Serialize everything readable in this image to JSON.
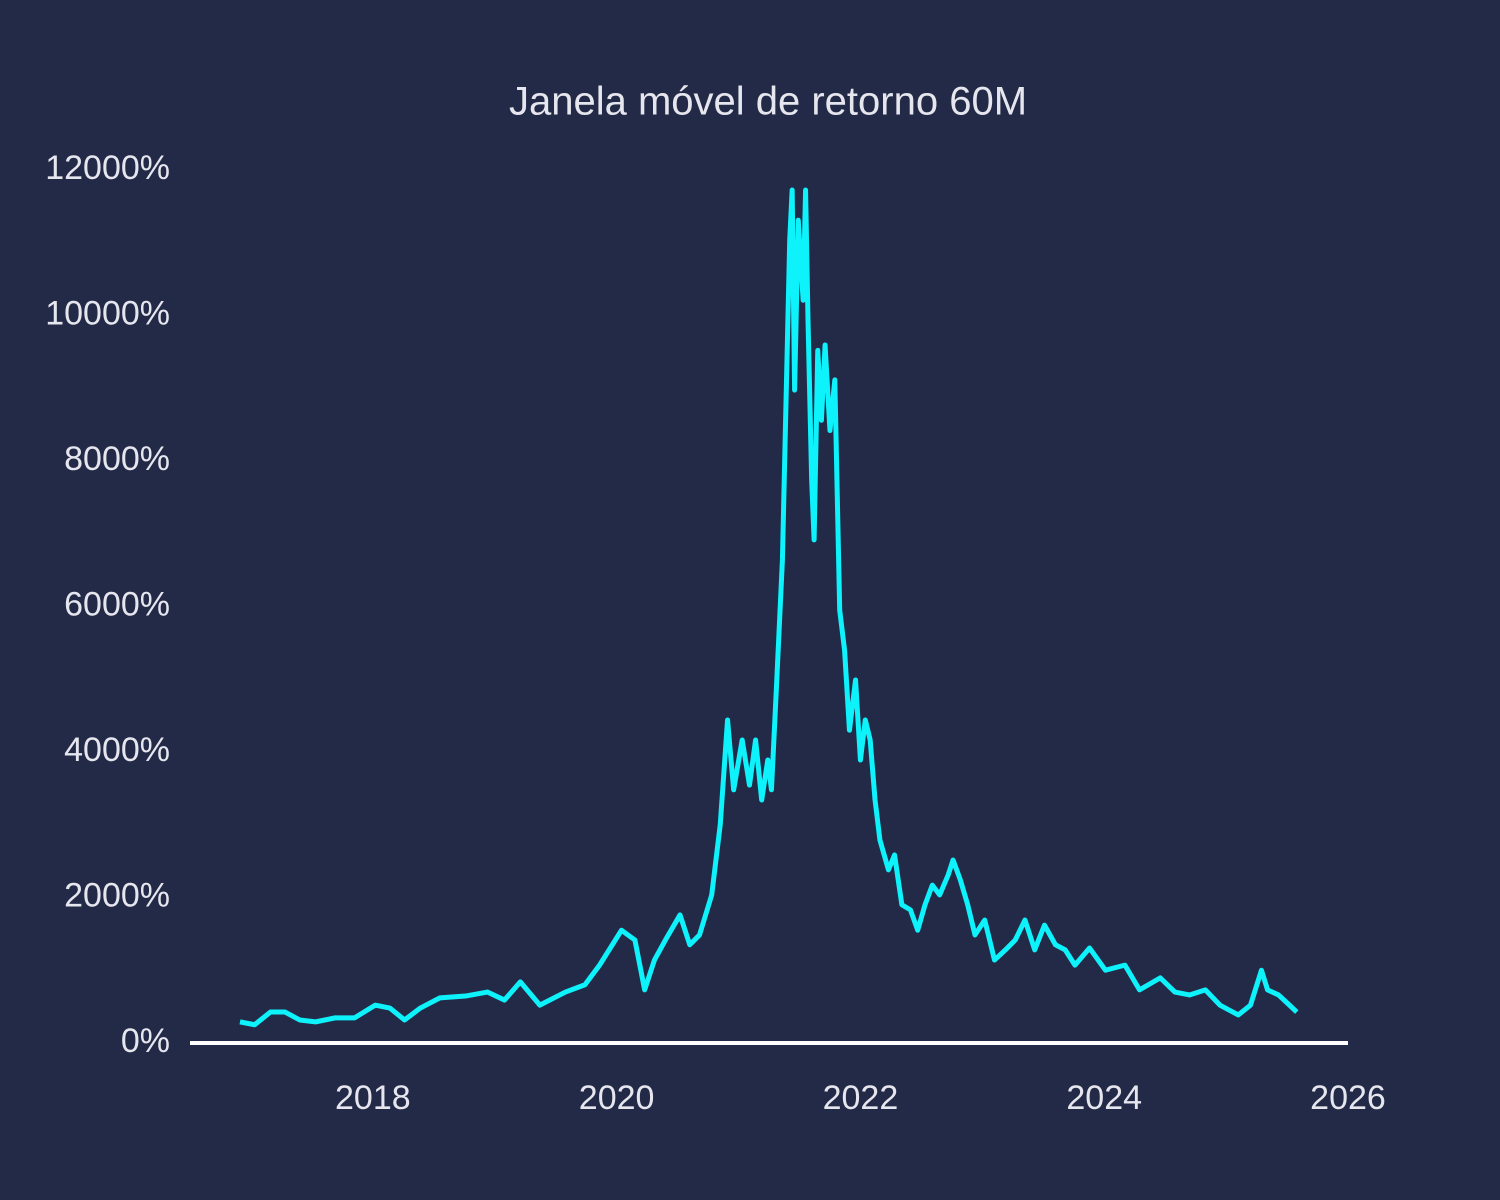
{
  "chart_data": {
    "type": "line",
    "title": "Janela móvel de retorno 60M",
    "x": [
      2016.91,
      2017.03,
      2017.16,
      2017.28,
      2017.4,
      2017.53,
      2017.69,
      2017.85,
      2018.02,
      2018.14,
      2018.26,
      2018.39,
      2018.55,
      2018.76,
      2018.94,
      2019.08,
      2019.21,
      2019.37,
      2019.58,
      2019.74,
      2019.86,
      2020.04,
      2020.15,
      2020.23,
      2020.31,
      2020.4,
      2020.52,
      2020.6,
      2020.68,
      2020.78,
      2020.85,
      2020.91,
      2020.96,
      2021.03,
      2021.09,
      2021.14,
      2021.19,
      2021.24,
      2021.27,
      2021.31,
      2021.36,
      2021.39,
      2021.42,
      2021.44,
      2021.46,
      2021.49,
      2021.53,
      2021.55,
      2021.57,
      2021.6,
      2021.62,
      2021.65,
      2021.68,
      2021.71,
      2021.75,
      2021.79,
      2021.83,
      2021.87,
      2021.91,
      2021.96,
      2022.0,
      2022.04,
      2022.08,
      2022.12,
      2022.16,
      2022.23,
      2022.28,
      2022.34,
      2022.41,
      2022.47,
      2022.53,
      2022.59,
      2022.65,
      2022.72,
      2022.76,
      2022.82,
      2022.88,
      2022.94,
      2023.02,
      2023.1,
      2023.19,
      2023.27,
      2023.35,
      2023.43,
      2023.51,
      2023.6,
      2023.68,
      2023.76,
      2023.88,
      2024.01,
      2024.17,
      2024.29,
      2024.46,
      2024.58,
      2024.7,
      2024.83,
      2024.95,
      2025.1,
      2025.2,
      2025.29,
      2025.34,
      2025.43,
      2025.52,
      2025.58
    ],
    "series": [
      {
        "color": "#0ef2fc",
        "values": [
          290,
          250,
          425,
          425,
          316,
          290,
          345,
          345,
          520,
          480,
          316,
          480,
          620,
          645,
          700,
          590,
          840,
          520,
          700,
          800,
          1070,
          1550,
          1415,
          730,
          1140,
          1415,
          1760,
          1350,
          1485,
          2035,
          3000,
          4440,
          3480,
          4165,
          3545,
          4165,
          3340,
          3890,
          3480,
          4850,
          6640,
          8840,
          11040,
          11725,
          8975,
          11310,
          10210,
          11725,
          9935,
          7740,
          6915,
          9520,
          8560,
          9595,
          8420,
          9115,
          5950,
          5400,
          4300,
          4990,
          3890,
          4440,
          4165,
          3340,
          2790,
          2380,
          2585,
          1900,
          1830,
          1550,
          1900,
          2170,
          2035,
          2310,
          2515,
          2240,
          1900,
          1485,
          1690,
          1140,
          1280,
          1415,
          1690,
          1280,
          1620,
          1350,
          1280,
          1070,
          1305,
          1000,
          1070,
          730,
          895,
          700,
          660,
          730,
          520,
          385,
          520,
          1000,
          730,
          660,
          520,
          425
        ]
      }
    ],
    "xlim": [
      2016.5,
      2026.0
    ],
    "xticks": [
      2018,
      2020,
      2022,
      2024,
      2026
    ],
    "ylim": [
      -340,
      12300
    ],
    "yticks": [
      {
        "value": 0,
        "label": "0%"
      },
      {
        "value": 2000,
        "label": "2000%"
      },
      {
        "value": 4000,
        "label": "4000%"
      },
      {
        "value": 6000,
        "label": "6000%"
      },
      {
        "value": 8000,
        "label": "8000%"
      },
      {
        "value": 10000,
        "label": "10000%"
      },
      {
        "value": 12000,
        "label": "12000%"
      }
    ],
    "grid": false
  }
}
